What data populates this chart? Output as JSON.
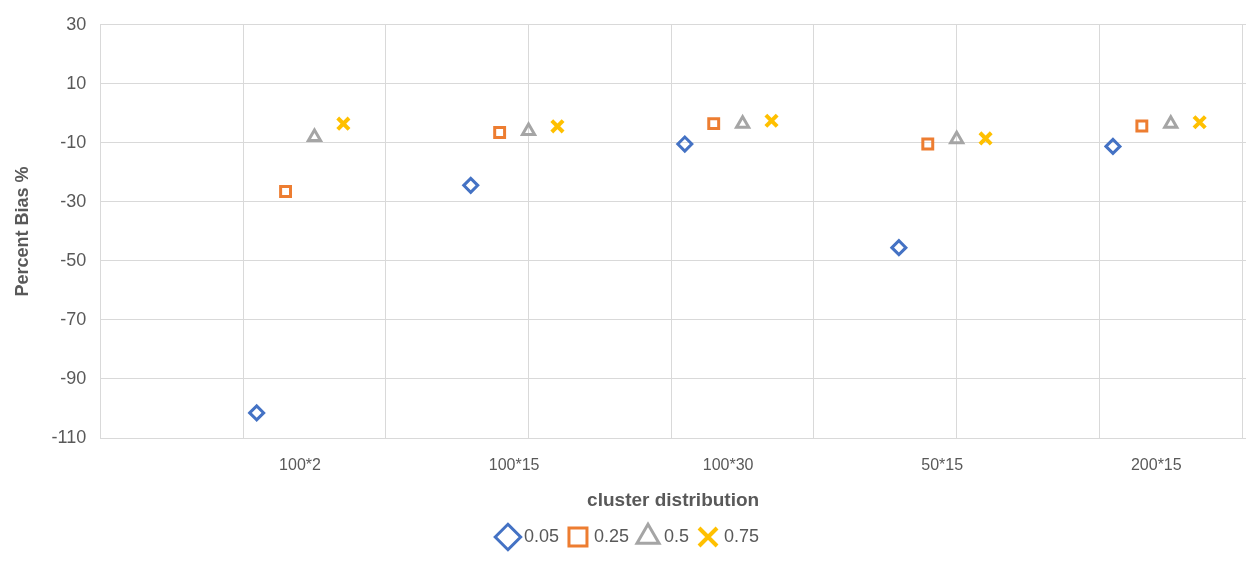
{
  "chart_data": {
    "type": "scatter",
    "xlabel": "cluster distribution",
    "ylabel": "Percent Bias %",
    "categories": [
      "100*2",
      "100*15",
      "100*30",
      "50*15",
      "200*15"
    ],
    "ylim": [
      -110,
      30
    ],
    "yticks": [
      30,
      10,
      -10,
      -30,
      -50,
      -70,
      -90,
      -110
    ],
    "grid": true,
    "legend": "bottom",
    "series": [
      {
        "name": "0.05",
        "color": "#4472c4",
        "marker": "diamond",
        "values": [
          -101.5,
          -24.4,
          -10.4,
          -45.5,
          -11.2
        ]
      },
      {
        "name": "0.25",
        "color": "#ed7d31",
        "marker": "square",
        "values": [
          -26.5,
          -6.5,
          -3.5,
          -10.4,
          -4.3
        ]
      },
      {
        "name": "0.5",
        "color": "#a5a5a5",
        "marker": "triangle",
        "values": [
          -8,
          -6,
          -3.5,
          -8.8,
          -3.5
        ]
      },
      {
        "name": "0.75",
        "color": "#ffc000",
        "marker": "cross",
        "values": [
          -3.5,
          -4.4,
          -2.5,
          -8.5,
          -3
        ]
      }
    ]
  }
}
